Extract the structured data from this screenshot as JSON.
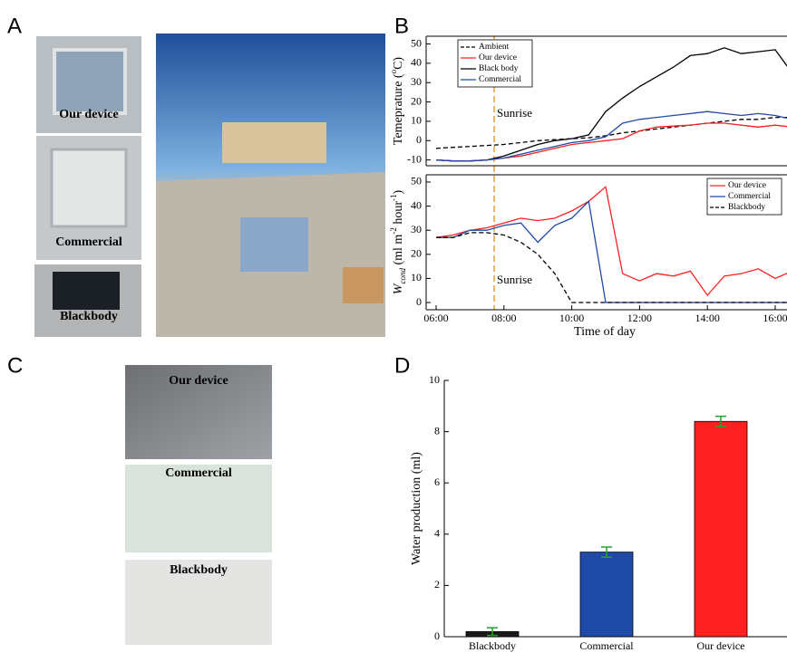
{
  "panels": [
    "A",
    "B",
    "C",
    "D"
  ],
  "photos": {
    "a_labels": [
      {
        "text": "Our device",
        "color": "#ff2a2a"
      },
      {
        "text": "Commercial",
        "color": "#3050c0"
      },
      {
        "text": "Blackbody",
        "color": "#000000"
      }
    ],
    "c_labels": [
      {
        "text": "Our device",
        "color": "#ff2a2a"
      },
      {
        "text": "Commercial",
        "color": "#3050c0"
      },
      {
        "text": "Blackbody",
        "color": "#000000"
      }
    ]
  },
  "chart_data": [
    {
      "type": "line",
      "ylabel": [
        "Temeprature (",
        "o",
        "C)"
      ],
      "x": [
        "06:00",
        "06:30",
        "07:00",
        "07:30",
        "08:00",
        "08:30",
        "09:00",
        "09:30",
        "10:00",
        "10:30",
        "11:00",
        "11:30",
        "12:00",
        "12:30",
        "13:00",
        "13:30",
        "14:00",
        "14:30",
        "15:00",
        "15:30",
        "16:00",
        "16:30"
      ],
      "series": [
        {
          "name": "Ambient",
          "color": "#000000",
          "dash": true,
          "values": [
            -4,
            -3.5,
            -3,
            -2.5,
            -2,
            -1,
            0,
            0.5,
            1,
            1.5,
            2.5,
            4,
            5,
            6,
            7,
            8,
            9,
            10,
            11,
            11,
            12,
            12
          ]
        },
        {
          "name": "Our device",
          "color": "#ff2020",
          "dash": false,
          "values": [
            -10,
            -10.5,
            -10.5,
            -10,
            -9,
            -8,
            -6,
            -4,
            -2,
            -1,
            0,
            1,
            5,
            7,
            7.5,
            8,
            9,
            9,
            8,
            7,
            8,
            7
          ]
        },
        {
          "name": "Black body",
          "color": "#000000",
          "dash": false,
          "values": [
            -10,
            -10.5,
            -10.5,
            -10,
            -8,
            -5,
            -2,
            0,
            1,
            3,
            15,
            22,
            28,
            33,
            38,
            44,
            45,
            48,
            45,
            46,
            47,
            35
          ]
        },
        {
          "name": "Commercial",
          "color": "#1f4aa8",
          "dash": false,
          "values": [
            -10,
            -10.5,
            -10.5,
            -10,
            -9,
            -7,
            -5,
            -3,
            -1,
            0,
            2,
            9,
            11,
            12,
            13,
            14,
            15,
            14,
            13,
            14,
            13,
            11
          ]
        }
      ],
      "ylim": [
        -13,
        54
      ],
      "yticks": [
        -10,
        0,
        10,
        20,
        30,
        40,
        50
      ],
      "legend": "upper left",
      "annotation": "Sunrise"
    },
    {
      "type": "line",
      "ylabel": [
        "W",
        "cond",
        " (ml m",
        "-2",
        " hour",
        "-1",
        ")"
      ],
      "xlabel": "Time of day",
      "x": [
        "06:00",
        "06:30",
        "07:00",
        "07:30",
        "08:00",
        "08:30",
        "09:00",
        "09:30",
        "10:00",
        "10:30",
        "11:00",
        "11:30",
        "12:00",
        "12:30",
        "13:00",
        "13:30",
        "14:00",
        "14:30",
        "15:00",
        "15:30",
        "16:00",
        "16:30"
      ],
      "series": [
        {
          "name": "Our device",
          "color": "#ff2020",
          "dash": false,
          "values": [
            27,
            28,
            30,
            31,
            33,
            35,
            34,
            35,
            38,
            42,
            48,
            12,
            9,
            12,
            11,
            13,
            3,
            11,
            12,
            14,
            10,
            13
          ]
        },
        {
          "name": "Commercial",
          "color": "#1f4aa8",
          "dash": false,
          "values": [
            27,
            27,
            30,
            30,
            32,
            33,
            25,
            32,
            35,
            42,
            0,
            0,
            0,
            0,
            0,
            0,
            0,
            0,
            0,
            0,
            0,
            0
          ]
        },
        {
          "name": "Blackbody",
          "color": "#000000",
          "dash": true,
          "values": [
            27,
            27,
            29,
            29,
            28,
            25,
            20,
            12,
            0,
            0,
            0,
            0,
            0,
            0,
            0,
            0,
            0,
            0,
            0,
            0,
            0,
            0
          ]
        }
      ],
      "ylim": [
        -3,
        53
      ],
      "yticks": [
        0,
        10,
        20,
        30,
        40,
        50
      ],
      "xticks": [
        "06:00",
        "08:00",
        "10:00",
        "12:00",
        "14:00",
        "16:00"
      ],
      "legend": "upper right",
      "annotation": "Sunrise"
    },
    {
      "type": "bar",
      "ylabel": "Water production (ml)",
      "categories": [
        "Blackbody",
        "Commercial",
        "Our device"
      ],
      "values": [
        0.2,
        3.3,
        8.4
      ],
      "errors": [
        0.15,
        0.2,
        0.2
      ],
      "colors": [
        "#1a1a1a",
        "#1f4aa8",
        "#ff2020"
      ],
      "error_color": "#2ca02c",
      "ylim": [
        0,
        10
      ],
      "yticks": [
        0,
        2,
        4,
        6,
        8,
        10
      ]
    }
  ]
}
